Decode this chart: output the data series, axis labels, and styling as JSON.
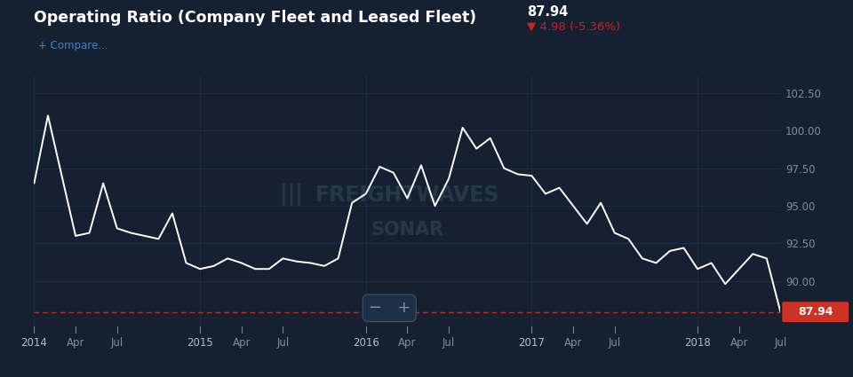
{
  "title": "Operating Ratio (Company Fleet and Leased Fleet)",
  "title_value": "87.94",
  "title_change": "▼ 4.98 (-5.36%)",
  "compare_label": "+ Compare...",
  "watermark_line1": "FREIGHTWAVES",
  "watermark_line2": "SONAR",
  "bg_color": "#152030",
  "plot_bg_color": "#172030",
  "line_color": "#ffffff",
  "grid_color": "#1e3045",
  "axis_label_color": "#7a8fa0",
  "title_color": "#ffffff",
  "value_color": "#ffffff",
  "change_color": "#cc2222",
  "ylim_low": 87.0,
  "ylim_high": 103.8,
  "yticks": [
    90.0,
    92.5,
    95.0,
    97.5,
    100.0,
    102.5
  ],
  "ytick_labels": [
    "90.00",
    "92.50",
    "95.00",
    "97.50",
    "100.00",
    "102.50"
  ],
  "x_tick_months": [
    0,
    3,
    6,
    12,
    15,
    18,
    24,
    27,
    30,
    36,
    39,
    42,
    48,
    51,
    54
  ],
  "x_tick_labels": [
    "2014",
    "Apr",
    "Jul",
    "2015",
    "Apr",
    "Jul",
    "2016",
    "Apr",
    "Jul",
    "2017",
    "Apr",
    "Jul",
    "2018",
    "Apr",
    "Jul"
  ],
  "data_y": [
    96.5,
    101.0,
    97.0,
    93.0,
    93.2,
    96.5,
    93.5,
    93.2,
    93.0,
    92.8,
    94.5,
    91.2,
    90.8,
    91.0,
    91.5,
    91.2,
    90.8,
    90.8,
    91.5,
    91.3,
    91.2,
    91.0,
    91.5,
    95.2,
    95.8,
    97.6,
    97.2,
    95.5,
    97.7,
    95.0,
    96.8,
    100.2,
    98.8,
    99.5,
    97.5,
    97.1,
    97.0,
    95.8,
    96.2,
    95.0,
    93.8,
    95.2,
    93.2,
    92.8,
    91.5,
    91.2,
    92.0,
    92.2,
    90.8,
    91.2,
    89.8,
    90.8,
    91.8,
    91.5,
    87.94
  ],
  "last_value": 87.94,
  "last_value_bg": "#cc3322",
  "dashed_line_color": "#cc3322",
  "zoom_minus": "−",
  "zoom_plus": "+"
}
